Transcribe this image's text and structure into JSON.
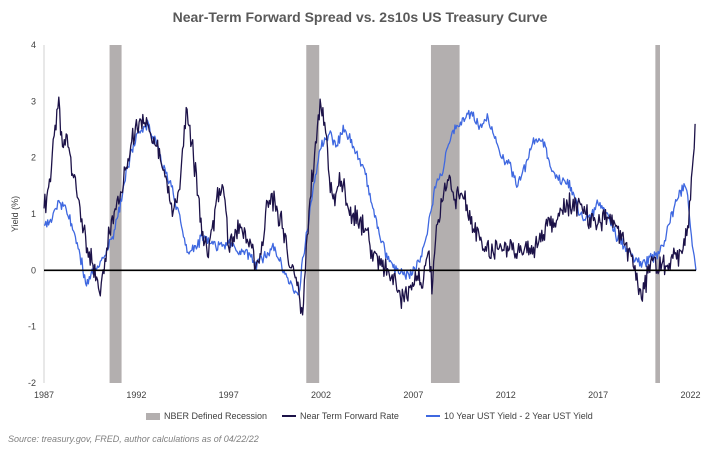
{
  "chart_data": {
    "type": "line",
    "title": "Near-Term Forward Spread vs. 2s10s US Treasury Curve",
    "ylabel": "Yield (%)",
    "xlabel": "",
    "xlim": [
      1987.0,
      2022.3
    ],
    "ylim": [
      -2,
      4
    ],
    "x_ticks": [
      1987,
      1992,
      1997,
      2002,
      2007,
      2012,
      2017,
      2022
    ],
    "y_ticks": [
      -2,
      -1,
      0,
      1,
      2,
      3,
      4
    ],
    "zero_line": true,
    "grid": false,
    "legend_position": "bottom",
    "colors": {
      "recession": "#b3afaf",
      "forward": "#1c1248",
      "spread": "#3f68e0",
      "zero_line": "#000000"
    },
    "recessions": [
      {
        "start": 1990.55,
        "end": 1991.2
      },
      {
        "start": 2001.2,
        "end": 2001.9
      },
      {
        "start": 2007.95,
        "end": 2009.5
      },
      {
        "start": 2020.1,
        "end": 2020.35
      }
    ],
    "legend": [
      {
        "key": "recession",
        "label": "NBER Defined Recession",
        "kind": "box"
      },
      {
        "key": "forward",
        "label": "Near Term Forward Rate",
        "kind": "line"
      },
      {
        "key": "spread",
        "label": "10 Year UST Yield - 2 Year UST Yield",
        "kind": "line"
      }
    ],
    "series": [
      {
        "key": "forward",
        "name": "Near Term Forward Rate",
        "x": [
          1987.0,
          1987.3,
          1987.6,
          1987.8,
          1988.0,
          1988.2,
          1988.4,
          1988.6,
          1988.8,
          1989.0,
          1989.3,
          1989.6,
          1990.0,
          1990.3,
          1990.6,
          1990.9,
          1991.2,
          1991.5,
          1991.8,
          1992.0,
          1992.3,
          1992.6,
          1993.0,
          1993.5,
          1994.0,
          1994.4,
          1994.7,
          1995.0,
          1995.3,
          1995.6,
          1995.9,
          1996.2,
          1996.5,
          1996.8,
          1997.0,
          1997.3,
          1997.6,
          1997.9,
          1998.2,
          1998.5,
          1998.8,
          1999.0,
          1999.3,
          1999.6,
          1999.9,
          2000.2,
          2000.5,
          2000.8,
          2001.0,
          2001.2,
          2001.5,
          2001.8,
          2002.0,
          2002.2,
          2002.4,
          2002.6,
          2002.8,
          2003.0,
          2003.3,
          2003.6,
          2004.0,
          2004.4,
          2004.8,
          2005.2,
          2005.6,
          2006.0,
          2006.4,
          2006.8,
          2007.2,
          2007.5,
          2007.8,
          2008.0,
          2008.3,
          2008.6,
          2008.9,
          2009.2,
          2009.5,
          2009.8,
          2010.1,
          2010.5,
          2010.9,
          2011.3,
          2011.7,
          2012.0,
          2012.5,
          2013.0,
          2013.5,
          2014.0,
          2014.5,
          2015.0,
          2015.5,
          2016.0,
          2016.5,
          2017.0,
          2017.5,
          2018.0,
          2018.5,
          2019.0,
          2019.3,
          2019.6,
          2019.9,
          2020.2,
          2020.5,
          2020.8,
          2021.1,
          2021.4,
          2021.7,
          2021.9,
          2022.1,
          2022.25
        ],
        "y": [
          1.1,
          1.5,
          2.5,
          2.9,
          2.2,
          2.4,
          2.0,
          1.7,
          1.4,
          0.9,
          0.5,
          0.1,
          -0.4,
          0.2,
          0.8,
          1.1,
          1.5,
          2.0,
          2.3,
          2.5,
          2.7,
          2.6,
          2.3,
          1.8,
          1.0,
          1.6,
          2.8,
          2.3,
          1.4,
          0.6,
          0.3,
          0.9,
          1.5,
          1.3,
          0.4,
          0.6,
          0.8,
          0.5,
          0.4,
          0.1,
          0.3,
          1.0,
          1.3,
          1.1,
          0.8,
          0.3,
          -0.1,
          -0.3,
          -0.9,
          0.3,
          1.6,
          2.5,
          3.0,
          2.6,
          1.8,
          1.4,
          1.2,
          1.6,
          1.4,
          1.0,
          0.9,
          0.7,
          0.3,
          0.1,
          0.0,
          -0.2,
          -0.5,
          -0.4,
          0.0,
          -0.3,
          0.4,
          -0.2,
          0.8,
          1.3,
          1.7,
          1.2,
          1.4,
          1.3,
          0.9,
          0.6,
          0.4,
          0.3,
          0.5,
          0.4,
          0.3,
          0.4,
          0.3,
          0.7,
          0.8,
          1.1,
          1.2,
          1.1,
          0.9,
          0.8,
          1.0,
          0.8,
          0.4,
          0.1,
          -0.5,
          -0.2,
          0.2,
          0.1,
          0.1,
          0.1,
          0.2,
          0.3,
          0.5,
          0.8,
          1.7,
          2.6
        ]
      },
      {
        "key": "spread",
        "name": "10 Year UST Yield - 2 Year UST Yield",
        "x": [
          1987.0,
          1987.4,
          1987.8,
          1988.2,
          1988.6,
          1989.0,
          1989.3,
          1989.6,
          1990.0,
          1990.3,
          1990.6,
          1990.9,
          1991.2,
          1991.5,
          1991.8,
          1992.0,
          1992.3,
          1992.6,
          1993.0,
          1993.5,
          1994.0,
          1994.4,
          1994.8,
          1995.2,
          1995.6,
          1996.0,
          1996.5,
          1997.0,
          1997.5,
          1998.0,
          1998.5,
          1999.0,
          1999.5,
          2000.0,
          2000.4,
          2000.8,
          2001.0,
          2001.3,
          2001.6,
          2001.9,
          2002.2,
          2002.5,
          2002.8,
          2003.2,
          2003.6,
          2004.0,
          2004.4,
          2004.8,
          2005.2,
          2005.6,
          2006.0,
          2006.5,
          2007.0,
          2007.4,
          2007.8,
          2008.2,
          2008.6,
          2009.0,
          2009.4,
          2009.8,
          2010.2,
          2010.6,
          2011.0,
          2011.4,
          2011.8,
          2012.2,
          2012.6,
          2013.0,
          2013.5,
          2014.0,
          2014.5,
          2015.0,
          2015.5,
          2016.0,
          2016.5,
          2017.0,
          2017.5,
          2018.0,
          2018.5,
          2019.0,
          2019.4,
          2019.8,
          2020.2,
          2020.6,
          2021.0,
          2021.4,
          2021.8,
          2022.0,
          2022.15,
          2022.3
        ],
        "y": [
          0.8,
          0.9,
          1.2,
          1.1,
          0.7,
          0.2,
          -0.3,
          0.0,
          0.1,
          0.3,
          0.5,
          0.8,
          1.3,
          1.8,
          2.2,
          2.4,
          2.5,
          2.6,
          2.3,
          1.8,
          1.4,
          0.8,
          0.3,
          0.4,
          0.6,
          0.5,
          0.4,
          0.5,
          0.3,
          0.3,
          0.1,
          0.3,
          0.4,
          0.0,
          -0.3,
          -0.4,
          0.2,
          0.8,
          1.5,
          2.1,
          2.3,
          2.4,
          2.2,
          2.5,
          2.3,
          2.0,
          1.7,
          1.1,
          0.6,
          0.2,
          0.0,
          -0.1,
          0.0,
          0.2,
          0.8,
          1.5,
          1.8,
          2.4,
          2.6,
          2.7,
          2.8,
          2.5,
          2.7,
          2.4,
          2.0,
          1.9,
          1.5,
          1.8,
          2.3,
          2.3,
          1.8,
          1.6,
          1.5,
          1.0,
          0.9,
          1.2,
          1.0,
          0.6,
          0.4,
          0.2,
          0.1,
          0.2,
          0.3,
          0.5,
          1.0,
          1.4,
          1.5,
          0.8,
          0.3,
          0.0
        ]
      }
    ]
  },
  "source_note": "Source: treasury.gov, FRED, author calculations as of 04/22/22"
}
